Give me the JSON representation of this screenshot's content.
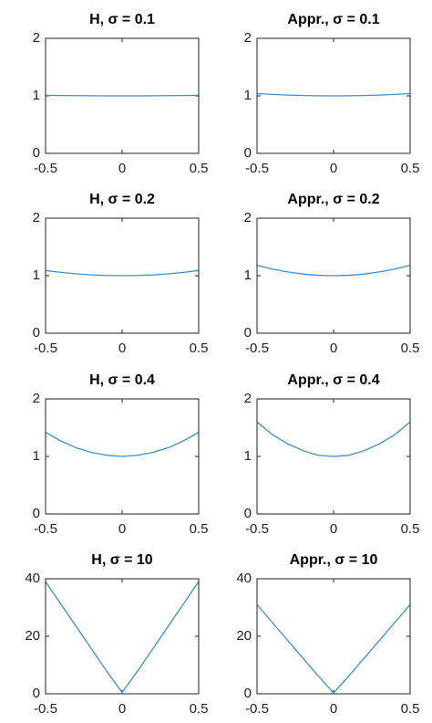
{
  "chart_data": [
    {
      "type": "line",
      "title": "H, σ = 0.1",
      "x": [
        -0.5,
        -0.4,
        -0.3,
        -0.2,
        -0.1,
        0,
        0.1,
        0.2,
        0.3,
        0.4,
        0.5
      ],
      "values": [
        1.01,
        1.006,
        1.004,
        1.002,
        1.0,
        1.0,
        1.0,
        1.002,
        1.004,
        1.006,
        1.01
      ],
      "color": "#3b8fd4",
      "xlim": [
        -0.5,
        0.5
      ],
      "ylim": [
        0,
        2
      ],
      "xticks": [
        -0.5,
        0,
        0.5
      ],
      "yticks": [
        0,
        1,
        2
      ]
    },
    {
      "type": "line",
      "title": "Appr., σ = 0.1",
      "x": [
        -0.5,
        -0.4,
        -0.3,
        -0.2,
        -0.1,
        0,
        0.1,
        0.2,
        0.3,
        0.4,
        0.5
      ],
      "values": [
        1.04,
        1.026,
        1.014,
        1.006,
        1.002,
        1.0,
        1.002,
        1.006,
        1.014,
        1.026,
        1.04
      ],
      "color": "#3b8fd4",
      "xlim": [
        -0.5,
        0.5
      ],
      "ylim": [
        0,
        2
      ],
      "xticks": [
        -0.5,
        0,
        0.5
      ],
      "yticks": [
        0,
        1,
        2
      ]
    },
    {
      "type": "line",
      "title": "H, σ = 0.2",
      "x": [
        -0.5,
        -0.4,
        -0.3,
        -0.2,
        -0.1,
        0,
        0.1,
        0.2,
        0.3,
        0.4,
        0.5
      ],
      "values": [
        1.09,
        1.058,
        1.032,
        1.014,
        1.004,
        1.0,
        1.004,
        1.014,
        1.032,
        1.058,
        1.09
      ],
      "color": "#3b8fd4",
      "xlim": [
        -0.5,
        0.5
      ],
      "ylim": [
        0,
        2
      ],
      "xticks": [
        -0.5,
        0,
        0.5
      ],
      "yticks": [
        0,
        1,
        2
      ]
    },
    {
      "type": "line",
      "title": "Appr., σ = 0.2",
      "x": [
        -0.5,
        -0.4,
        -0.3,
        -0.2,
        -0.1,
        0,
        0.1,
        0.2,
        0.3,
        0.4,
        0.5
      ],
      "values": [
        1.18,
        1.115,
        1.065,
        1.029,
        1.007,
        1.0,
        1.007,
        1.029,
        1.065,
        1.115,
        1.18
      ],
      "color": "#3b8fd4",
      "xlim": [
        -0.5,
        0.5
      ],
      "ylim": [
        0,
        2
      ],
      "xticks": [
        -0.5,
        0,
        0.5
      ],
      "yticks": [
        0,
        1,
        2
      ]
    },
    {
      "type": "line",
      "title": "H, σ = 0.4",
      "x": [
        -0.5,
        -0.4,
        -0.3,
        -0.2,
        -0.1,
        0,
        0.1,
        0.2,
        0.3,
        0.4,
        0.5
      ],
      "values": [
        1.42,
        1.27,
        1.15,
        1.07,
        1.02,
        1.0,
        1.02,
        1.07,
        1.15,
        1.27,
        1.42
      ],
      "color": "#3b8fd4",
      "xlim": [
        -0.5,
        0.5
      ],
      "ylim": [
        0,
        2
      ],
      "xticks": [
        -0.5,
        0,
        0.5
      ],
      "yticks": [
        0,
        1,
        2
      ]
    },
    {
      "type": "line",
      "title": "Appr., σ = 0.4",
      "x": [
        -0.5,
        -0.4,
        -0.3,
        -0.2,
        -0.1,
        0,
        0.1,
        0.2,
        0.3,
        0.4,
        0.5
      ],
      "values": [
        1.6,
        1.38,
        1.22,
        1.1,
        1.02,
        1.0,
        1.02,
        1.1,
        1.22,
        1.38,
        1.6
      ],
      "color": "#3b8fd4",
      "xlim": [
        -0.5,
        0.5
      ],
      "ylim": [
        0,
        2
      ],
      "xticks": [
        -0.5,
        0,
        0.5
      ],
      "yticks": [
        0,
        1,
        2
      ]
    },
    {
      "type": "line",
      "title": "H, σ = 10",
      "x": [
        -0.5,
        -0.4,
        -0.3,
        -0.2,
        -0.1,
        0,
        0.1,
        0.2,
        0.3,
        0.4,
        0.5
      ],
      "values": [
        39,
        31.2,
        23.4,
        15.6,
        7.8,
        0.5,
        7.8,
        15.6,
        23.4,
        31.2,
        39
      ],
      "color": "#3b8fd4",
      "xlim": [
        -0.5,
        0.5
      ],
      "ylim": [
        0,
        40
      ],
      "xticks": [
        -0.5,
        0,
        0.5
      ],
      "yticks": [
        0,
        20,
        40
      ]
    },
    {
      "type": "line",
      "title": "Appr., σ = 10",
      "x": [
        -0.5,
        -0.4,
        -0.3,
        -0.2,
        -0.1,
        0,
        0.1,
        0.2,
        0.3,
        0.4,
        0.5
      ],
      "values": [
        31,
        24.8,
        18.6,
        12.4,
        6.2,
        0.3,
        6.2,
        12.4,
        18.6,
        24.8,
        31
      ],
      "color": "#3b8fd4",
      "xlim": [
        -0.5,
        0.5
      ],
      "ylim": [
        0,
        40
      ],
      "xticks": [
        -0.5,
        0,
        0.5
      ],
      "yticks": [
        0,
        20,
        40
      ]
    }
  ]
}
